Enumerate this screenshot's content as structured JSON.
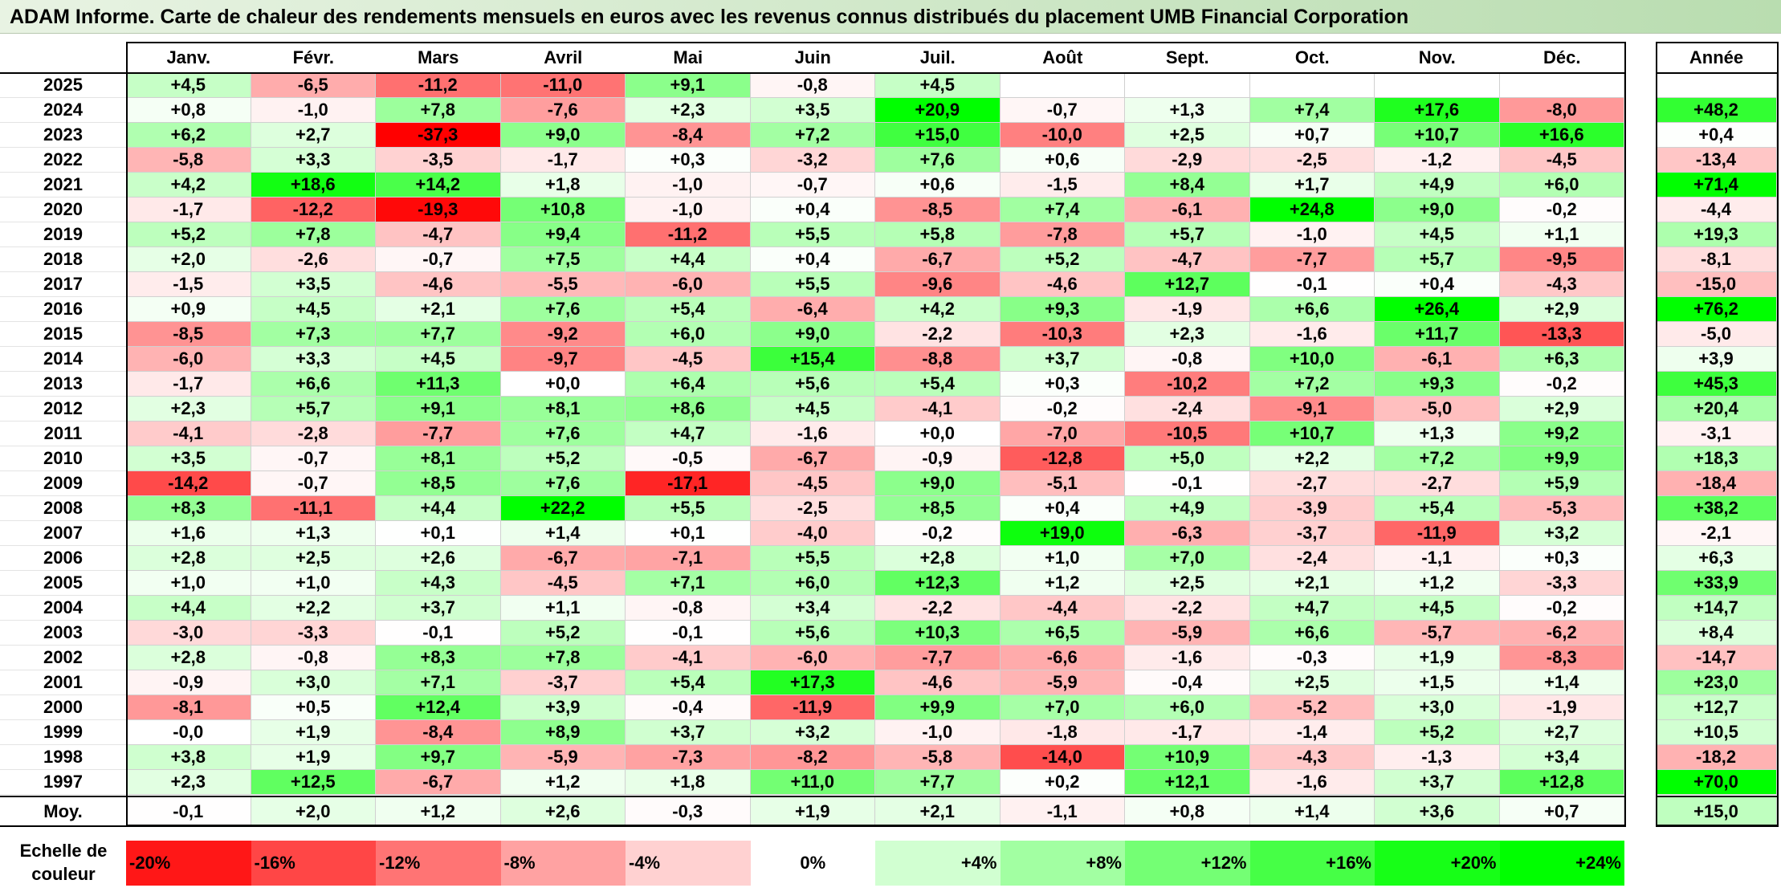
{
  "title": "ADAM Informe. Carte de chaleur des rendements mensuels en euros avec les revenus connus distribués du placement UMB Financial Corporation",
  "chart_data": {
    "type": "heatmap",
    "months": [
      "Janv.",
      "Févr.",
      "Mars",
      "Avril",
      "Mai",
      "Juin",
      "Juil.",
      "Août",
      "Sept.",
      "Oct.",
      "Nov.",
      "Déc."
    ],
    "annual_header": "Année",
    "rows": [
      {
        "year": "2025",
        "values": [
          "+4,5",
          "-6,5",
          "-11,2",
          "-11,0",
          "+9,1",
          "-0,8",
          "+4,5",
          "",
          "",
          "",
          "",
          ""
        ],
        "annual": ""
      },
      {
        "year": "2024",
        "values": [
          "+0,8",
          "-1,0",
          "+7,8",
          "-7,6",
          "+2,3",
          "+3,5",
          "+20,9",
          "-0,7",
          "+1,3",
          "+7,4",
          "+17,6",
          "-8,0"
        ],
        "annual": "+48,2"
      },
      {
        "year": "2023",
        "values": [
          "+6,2",
          "+2,7",
          "-37,3",
          "+9,0",
          "-8,4",
          "+7,2",
          "+15,0",
          "-10,0",
          "+2,5",
          "+0,7",
          "+10,7",
          "+16,6"
        ],
        "annual": "+0,4"
      },
      {
        "year": "2022",
        "values": [
          "-5,8",
          "+3,3",
          "-3,5",
          "-1,7",
          "+0,3",
          "-3,2",
          "+7,6",
          "+0,6",
          "-2,9",
          "-2,5",
          "-1,2",
          "-4,5"
        ],
        "annual": "-13,4"
      },
      {
        "year": "2021",
        "values": [
          "+4,2",
          "+18,6",
          "+14,2",
          "+1,8",
          "-1,0",
          "-0,7",
          "+0,6",
          "-1,5",
          "+8,4",
          "+1,7",
          "+4,9",
          "+6,0"
        ],
        "annual": "+71,4"
      },
      {
        "year": "2020",
        "values": [
          "-1,7",
          "-12,2",
          "-19,3",
          "+10,8",
          "-1,0",
          "+0,4",
          "-8,5",
          "+7,4",
          "-6,1",
          "+24,8",
          "+9,0",
          "-0,2"
        ],
        "annual": "-4,4"
      },
      {
        "year": "2019",
        "values": [
          "+5,2",
          "+7,8",
          "-4,7",
          "+9,4",
          "-11,2",
          "+5,5",
          "+5,8",
          "-7,8",
          "+5,7",
          "-1,0",
          "+4,5",
          "+1,1"
        ],
        "annual": "+19,3"
      },
      {
        "year": "2018",
        "values": [
          "+2,0",
          "-2,6",
          "-0,7",
          "+7,5",
          "+4,4",
          "+0,4",
          "-6,7",
          "+5,2",
          "-4,7",
          "-7,7",
          "+5,7",
          "-9,5"
        ],
        "annual": "-8,1"
      },
      {
        "year": "2017",
        "values": [
          "-1,5",
          "+3,5",
          "-4,6",
          "-5,5",
          "-6,0",
          "+5,5",
          "-9,6",
          "-4,6",
          "+12,7",
          "-0,1",
          "+0,4",
          "-4,3"
        ],
        "annual": "-15,0"
      },
      {
        "year": "2016",
        "values": [
          "+0,9",
          "+4,5",
          "+2,1",
          "+7,6",
          "+5,4",
          "-6,4",
          "+4,2",
          "+9,3",
          "-1,9",
          "+6,6",
          "+26,4",
          "+2,9"
        ],
        "annual": "+76,2"
      },
      {
        "year": "2015",
        "values": [
          "-8,5",
          "+7,3",
          "+7,7",
          "-9,2",
          "+6,0",
          "+9,0",
          "-2,2",
          "-10,3",
          "+2,3",
          "-1,6",
          "+11,7",
          "-13,3"
        ],
        "annual": "-5,0"
      },
      {
        "year": "2014",
        "values": [
          "-6,0",
          "+3,3",
          "+4,5",
          "-9,7",
          "-4,5",
          "+15,4",
          "-8,8",
          "+3,7",
          "-0,8",
          "+10,0",
          "-6,1",
          "+6,3"
        ],
        "annual": "+3,9"
      },
      {
        "year": "2013",
        "values": [
          "-1,7",
          "+6,6",
          "+11,3",
          "+0,0",
          "+6,4",
          "+5,6",
          "+5,4",
          "+0,3",
          "-10,2",
          "+7,2",
          "+9,3",
          "-0,2"
        ],
        "annual": "+45,3"
      },
      {
        "year": "2012",
        "values": [
          "+2,3",
          "+5,7",
          "+9,1",
          "+8,1",
          "+8,6",
          "+4,5",
          "-4,1",
          "-0,2",
          "-2,4",
          "-9,1",
          "-5,0",
          "+2,9"
        ],
        "annual": "+20,4"
      },
      {
        "year": "2011",
        "values": [
          "-4,1",
          "-2,8",
          "-7,7",
          "+7,6",
          "+4,7",
          "-1,6",
          "+0,0",
          "-7,0",
          "-10,5",
          "+10,7",
          "+1,3",
          "+9,2"
        ],
        "annual": "-3,1"
      },
      {
        "year": "2010",
        "values": [
          "+3,5",
          "-0,7",
          "+8,1",
          "+5,2",
          "-0,5",
          "-6,7",
          "-0,9",
          "-12,8",
          "+5,0",
          "+2,2",
          "+7,2",
          "+9,9"
        ],
        "annual": "+18,3"
      },
      {
        "year": "2009",
        "values": [
          "-14,2",
          "-0,7",
          "+8,5",
          "+7,6",
          "-17,1",
          "-4,5",
          "+9,0",
          "-5,1",
          "-0,1",
          "-2,7",
          "-2,7",
          "+5,9"
        ],
        "annual": "-18,4"
      },
      {
        "year": "2008",
        "values": [
          "+8,3",
          "-11,1",
          "+4,4",
          "+22,2",
          "+5,5",
          "-2,5",
          "+8,5",
          "+0,4",
          "+4,9",
          "-3,9",
          "+5,4",
          "-5,3"
        ],
        "annual": "+38,2"
      },
      {
        "year": "2007",
        "values": [
          "+1,6",
          "+1,3",
          "+0,1",
          "+1,4",
          "+0,1",
          "-4,0",
          "-0,2",
          "+19,0",
          "-6,3",
          "-3,7",
          "-11,9",
          "+3,2"
        ],
        "annual": "-2,1"
      },
      {
        "year": "2006",
        "values": [
          "+2,8",
          "+2,5",
          "+2,6",
          "-6,7",
          "-7,1",
          "+5,5",
          "+2,8",
          "+1,0",
          "+7,0",
          "-2,4",
          "-1,1",
          "+0,3"
        ],
        "annual": "+6,3"
      },
      {
        "year": "2005",
        "values": [
          "+1,0",
          "+1,0",
          "+4,3",
          "-4,5",
          "+7,1",
          "+6,0",
          "+12,3",
          "+1,2",
          "+2,5",
          "+2,1",
          "+1,2",
          "-3,3"
        ],
        "annual": "+33,9"
      },
      {
        "year": "2004",
        "values": [
          "+4,4",
          "+2,2",
          "+3,7",
          "+1,1",
          "-0,8",
          "+3,4",
          "-2,2",
          "-4,4",
          "-2,2",
          "+4,7",
          "+4,5",
          "-0,2"
        ],
        "annual": "+14,7"
      },
      {
        "year": "2003",
        "values": [
          "-3,0",
          "-3,3",
          "-0,1",
          "+5,2",
          "-0,1",
          "+5,6",
          "+10,3",
          "+6,5",
          "-5,9",
          "+6,6",
          "-5,7",
          "-6,2"
        ],
        "annual": "+8,4"
      },
      {
        "year": "2002",
        "values": [
          "+2,8",
          "-0,8",
          "+8,3",
          "+7,8",
          "-4,1",
          "-6,0",
          "-7,7",
          "-6,6",
          "-1,6",
          "-0,3",
          "+1,9",
          "-8,3"
        ],
        "annual": "-14,7"
      },
      {
        "year": "2001",
        "values": [
          "-0,9",
          "+3,0",
          "+7,1",
          "-3,7",
          "+5,4",
          "+17,3",
          "-4,6",
          "-5,9",
          "-0,4",
          "+2,5",
          "+1,5",
          "+1,4"
        ],
        "annual": "+23,0"
      },
      {
        "year": "2000",
        "values": [
          "-8,1",
          "+0,5",
          "+12,4",
          "+3,9",
          "-0,4",
          "-11,9",
          "+9,9",
          "+7,0",
          "+6,0",
          "-5,2",
          "+3,0",
          "-1,9"
        ],
        "annual": "+12,7"
      },
      {
        "year": "1999",
        "values": [
          "-0,0",
          "+1,9",
          "-8,4",
          "+8,9",
          "+3,7",
          "+3,2",
          "-1,0",
          "-1,8",
          "-1,7",
          "-1,4",
          "+5,2",
          "+2,7"
        ],
        "annual": "+10,5"
      },
      {
        "year": "1998",
        "values": [
          "+3,8",
          "+1,9",
          "+9,7",
          "-5,9",
          "-7,3",
          "-8,2",
          "-5,8",
          "-14,0",
          "+10,9",
          "-4,3",
          "-1,3",
          "+3,4"
        ],
        "annual": "-18,2"
      },
      {
        "year": "1997",
        "values": [
          "+2,3",
          "+12,5",
          "-6,7",
          "+1,2",
          "+1,8",
          "+11,0",
          "+7,7",
          "+0,2",
          "+12,1",
          "-1,6",
          "+3,7",
          "+12,8"
        ],
        "annual": "+70,0"
      }
    ],
    "average": {
      "label": "Moy.",
      "values": [
        "-0,1",
        "+2,0",
        "+1,2",
        "+2,6",
        "-0,3",
        "+1,9",
        "+2,1",
        "-1,1",
        "+0,8",
        "+1,4",
        "+3,6",
        "+0,7"
      ],
      "annual": "+15,0"
    },
    "color_scale": {
      "label": "Echelle de couleur",
      "stops": [
        {
          "label": "-20%",
          "value": -20
        },
        {
          "label": "-16%",
          "value": -16
        },
        {
          "label": "-12%",
          "value": -12
        },
        {
          "label": "-8%",
          "value": -8
        },
        {
          "label": "-4%",
          "value": -4
        },
        {
          "label": "0%",
          "value": 0
        },
        {
          "label": "+4%",
          "value": 4
        },
        {
          "label": "+8%",
          "value": 8
        },
        {
          "label": "+12%",
          "value": 12
        },
        {
          "label": "+16%",
          "value": 16
        },
        {
          "label": "+20%",
          "value": 20
        },
        {
          "label": "+24%",
          "value": 24
        }
      ],
      "negative_color": "#ff0000",
      "positive_color": "#00ff00",
      "neutral_color": "#ffffff"
    }
  }
}
